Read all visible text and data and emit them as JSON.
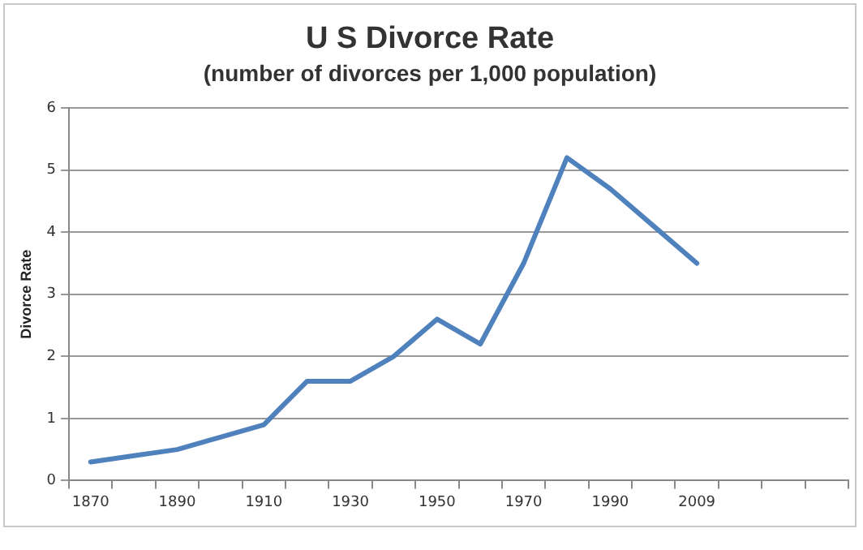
{
  "chart_data": {
    "type": "line",
    "title": "U S Divorce Rate",
    "subtitle": "(number of divorces per 1,000 population)",
    "ylabel": "Divorce Rate",
    "categories": [
      "1870",
      null,
      "1890",
      null,
      "1910",
      null,
      "1930",
      null,
      "1950",
      null,
      "1970",
      null,
      "1990",
      null,
      "2009",
      null,
      null,
      null
    ],
    "series": [
      {
        "color": "#4f81bd",
        "values": [
          0.3,
          0.4,
          0.5,
          0.7,
          0.9,
          1.6,
          1.6,
          2.0,
          2.6,
          2.2,
          3.5,
          5.2,
          4.7,
          4.1,
          3.5,
          null,
          null,
          null
        ]
      }
    ],
    "ylim": [
      0,
      6
    ],
    "yticks": [
      0,
      1,
      2,
      3,
      4,
      5,
      6
    ],
    "grid": "y",
    "legend": false,
    "marker": "none",
    "line_style": "solid"
  }
}
